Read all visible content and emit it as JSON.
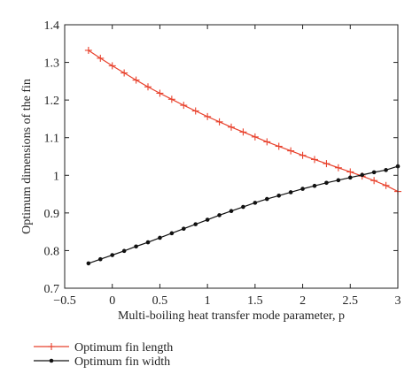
{
  "chart_data": {
    "type": "line",
    "title": "",
    "xlabel": "Multi-boiling heat transfer mode parameter, p",
    "ylabel": "Optimum dimensions of the fin",
    "xlim": [
      -0.5,
      3
    ],
    "ylim": [
      0.7,
      1.4
    ],
    "xticks": [
      -0.5,
      0,
      0.5,
      1,
      1.5,
      2,
      2.5,
      3
    ],
    "xtick_labels": [
      "−0.5",
      "0",
      "0.5",
      "1",
      "1.5",
      "2",
      "2.5",
      "3"
    ],
    "yticks": [
      0.7,
      0.8,
      0.9,
      1.0,
      1.1,
      1.2,
      1.3,
      1.4
    ],
    "ytick_labels": [
      "0.7",
      "0.8",
      "0.9",
      "1",
      "1.1",
      "1.2",
      "1.3",
      "1.4"
    ],
    "grid": false,
    "legend_position": "bottom-left-below-axes",
    "series": [
      {
        "name": "Optimum fin length",
        "color": "#e8412c",
        "marker": "plus",
        "x": [
          -0.25,
          -0.125,
          0,
          0.125,
          0.25,
          0.375,
          0.5,
          0.625,
          0.75,
          0.875,
          1,
          1.125,
          1.25,
          1.375,
          1.5,
          1.625,
          1.75,
          1.875,
          2,
          2.125,
          2.25,
          2.375,
          2.5,
          2.625,
          2.75,
          2.875,
          3
        ],
        "y": [
          1.332,
          1.311,
          1.291,
          1.272,
          1.253,
          1.235,
          1.218,
          1.202,
          1.186,
          1.171,
          1.156,
          1.142,
          1.128,
          1.115,
          1.102,
          1.089,
          1.077,
          1.065,
          1.053,
          1.042,
          1.031,
          1.02,
          1.009,
          0.998,
          0.986,
          0.973,
          0.957
        ]
      },
      {
        "name": "Optimum fin width",
        "color": "#111111",
        "marker": "dot",
        "x": [
          -0.25,
          -0.125,
          0,
          0.125,
          0.25,
          0.375,
          0.5,
          0.625,
          0.75,
          0.875,
          1,
          1.125,
          1.25,
          1.375,
          1.5,
          1.625,
          1.75,
          1.875,
          2,
          2.125,
          2.25,
          2.375,
          2.5,
          2.625,
          2.75,
          2.875,
          3
        ],
        "y": [
          0.766,
          0.777,
          0.788,
          0.799,
          0.811,
          0.822,
          0.834,
          0.846,
          0.858,
          0.87,
          0.882,
          0.894,
          0.905,
          0.916,
          0.927,
          0.937,
          0.946,
          0.955,
          0.964,
          0.972,
          0.98,
          0.987,
          0.994,
          1.001,
          1.008,
          1.014,
          1.024
        ]
      }
    ]
  }
}
